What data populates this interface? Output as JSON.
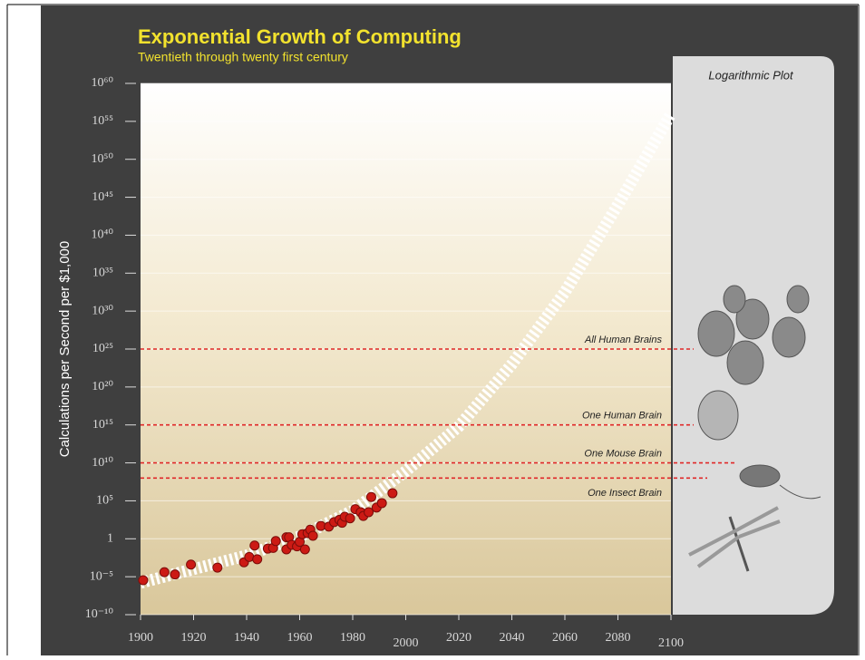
{
  "chart_data": {
    "type": "scatter",
    "title": "Exponential Growth of Computing",
    "subtitle": "Twentieth through twenty first century",
    "y_label": "Calculations per Second per $1,000",
    "panel_label": "Logarithmic Plot",
    "y_scale": "log",
    "grid": true,
    "xlim": [
      1900,
      2100
    ],
    "xticks": [
      1900,
      1920,
      1940,
      1960,
      1980,
      2000,
      2020,
      2040,
      2060,
      2080,
      2100
    ],
    "ylim": [
      1e-10,
      1e+60
    ],
    "yticks": [
      {
        "value": 1e-10,
        "label": "10⁻¹⁰"
      },
      {
        "value": 1e-05,
        "label": "10⁻⁵"
      },
      1,
      {
        "value": 100000.0,
        "label": "10⁵"
      },
      {
        "value": 10000000000.0,
        "label": "10¹⁰"
      },
      {
        "value": 1000000000000000.0,
        "label": "10¹⁵"
      },
      {
        "value": 1e+20,
        "label": "10²⁰"
      },
      {
        "value": 1e+25,
        "label": "10²⁵"
      },
      {
        "value": 1e+30,
        "label": "10³⁰"
      },
      {
        "value": 1e+35,
        "label": "10³⁵"
      },
      {
        "value": 1e+40,
        "label": "10⁴⁰"
      },
      {
        "value": 1e+45,
        "label": "10⁴⁵"
      },
      {
        "value": 1e+50,
        "label": "10⁵⁰"
      },
      {
        "value": 1e+55,
        "label": "10⁵⁵"
      },
      {
        "value": 1e+60,
        "label": "10⁶⁰"
      }
    ],
    "color": "#cc1a14",
    "x": [
      1901,
      1909,
      1913,
      1919,
      1929,
      1939,
      1941,
      1943,
      1944,
      1948,
      1950,
      1951,
      1955,
      1955,
      1956,
      1957,
      1959,
      1960,
      1961,
      1962,
      1963,
      1964,
      1965,
      1968,
      1971,
      1973,
      1975,
      1976,
      1977,
      1979,
      1981,
      1983,
      1984,
      1986,
      1987,
      1989,
      1991,
      1995
    ],
    "values": [
      3.5e-06,
      4e-05,
      2e-05,
      0.0004,
      0.00016,
      0.0008,
      0.004,
      0.13,
      0.002,
      0.05,
      0.063,
      0.5,
      1.6,
      0.04,
      1.6,
      0.16,
      0.1,
      0.4,
      4,
      0.04,
      5.6,
      16,
      2.5,
      50,
      40,
      160,
      320,
      130,
      800,
      500,
      8000,
      3200,
      1000,
      3200,
      320000,
      13000,
      50000,
      1000000
    ],
    "trend": {
      "x": [
        1900,
        1940,
        1960,
        1980,
        2000,
        2020,
        2040,
        2060,
        2080,
        2100
      ],
      "values": [
        1.6e-06,
        0.0063,
        2,
        5000,
        800000000.0,
        630000000000000.0,
        1e+23,
        3.2e+32,
        1e+44,
        1e+56
      ],
      "color": "#ffffff"
    },
    "reference_lines": [
      {
        "label": "All Human Brains",
        "value": 1e+25
      },
      {
        "label": "One Human Brain",
        "value": 1000000000000000.0
      },
      {
        "label": "One Mouse Brain",
        "value": 10000000000.0
      },
      {
        "label": "One Insect Brain",
        "value": 100000000.0
      }
    ],
    "reference_color": "#e02828"
  }
}
